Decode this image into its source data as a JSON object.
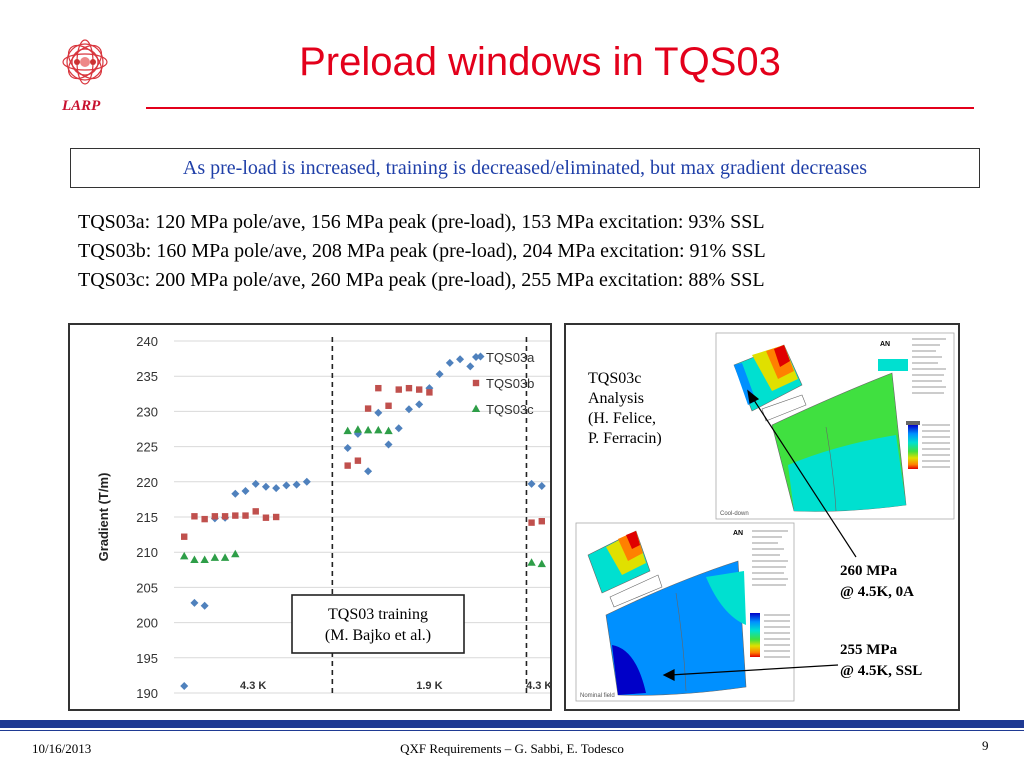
{
  "header": {
    "logo_text": "LARP",
    "title": "Preload windows in TQS03"
  },
  "callout": "As pre-load is increased, training is decreased/eliminated, but max gradient decreases",
  "specs": [
    "TQS03a: 120 MPa pole/ave, 156 MPa peak (pre-load), 153 MPa excitation: 93% SSL",
    "TQS03b: 160 MPa pole/ave, 208 MPa peak (pre-load), 204 MPa excitation: 91% SSL",
    "TQS03c: 200 MPa pole/ave, 260 MPa peak (pre-load), 255 MPa excitation: 88% SSL"
  ],
  "chart_data": {
    "type": "scatter",
    "ylabel": "Gradient (T/m)",
    "ylim": [
      190,
      240
    ],
    "yticks": [
      190,
      195,
      200,
      205,
      210,
      215,
      220,
      225,
      230,
      235,
      240
    ],
    "xlim": [
      0,
      37
    ],
    "region_labels": [
      "4.3 K",
      "1.9 K",
      "4.3 K"
    ],
    "region_boundaries": [
      15.5,
      34.5
    ],
    "annotation": [
      "TQS03 training",
      "(M. Bajko et al.)"
    ],
    "series": [
      {
        "name": "TQS03a",
        "color": "#4f81bd",
        "marker": "diamond",
        "x": [
          1,
          2,
          3,
          4,
          5,
          6,
          7,
          8,
          9,
          10,
          11,
          12,
          13,
          17,
          18,
          19,
          20,
          21,
          22,
          23,
          24,
          25,
          26,
          27,
          28,
          29,
          30,
          35,
          36
        ],
        "y": [
          191,
          202.8,
          202.4,
          214.8,
          214.9,
          218.3,
          218.7,
          219.7,
          219.3,
          219.1,
          219.5,
          219.6,
          220,
          224.8,
          226.8,
          221.5,
          229.8,
          225.3,
          227.6,
          230.3,
          231,
          233.3,
          235.3,
          236.9,
          237.4,
          236.4,
          237.8,
          219.7,
          219.4
        ]
      },
      {
        "name": "TQS03b",
        "color": "#c0504d",
        "marker": "square",
        "x": [
          1,
          2,
          3,
          4,
          5,
          6,
          7,
          8,
          9,
          10,
          17,
          18,
          19,
          20,
          21,
          22,
          23,
          24,
          25,
          35,
          36
        ],
        "y": [
          212.2,
          215.1,
          214.7,
          215.1,
          215.1,
          215.2,
          215.2,
          215.8,
          214.9,
          215,
          222.3,
          223,
          230.4,
          233.3,
          230.8,
          233.1,
          233.3,
          233.1,
          232.7,
          214.2,
          214.4
        ]
      },
      {
        "name": "TQS03c",
        "color": "#2e9e48",
        "marker": "triangle",
        "x": [
          1,
          2,
          3,
          4,
          5,
          6,
          17,
          18,
          19,
          20,
          21,
          35,
          36
        ],
        "y": [
          209.4,
          208.9,
          208.9,
          209.2,
          209.2,
          209.7,
          227.2,
          227.4,
          227.3,
          227.3,
          227.2,
          208.5,
          208.3
        ]
      }
    ]
  },
  "fea": {
    "analysis_label": [
      "TQS03c",
      "Analysis",
      "(H. Felice,",
      "P. Ferracin)"
    ],
    "annotation_1": [
      "260 MPa",
      "@ 4.5K, 0A"
    ],
    "annotation_2": [
      "255 MPa",
      "@ 4.5K, SSL"
    ],
    "top_caption": "Cool-down",
    "bottom_caption": "Nominal field",
    "ansys_mark": "AN"
  },
  "footer": {
    "date": "10/16/2013",
    "center": "QXF Requirements – G. Sabbi, E. Todesco",
    "page": "9"
  }
}
